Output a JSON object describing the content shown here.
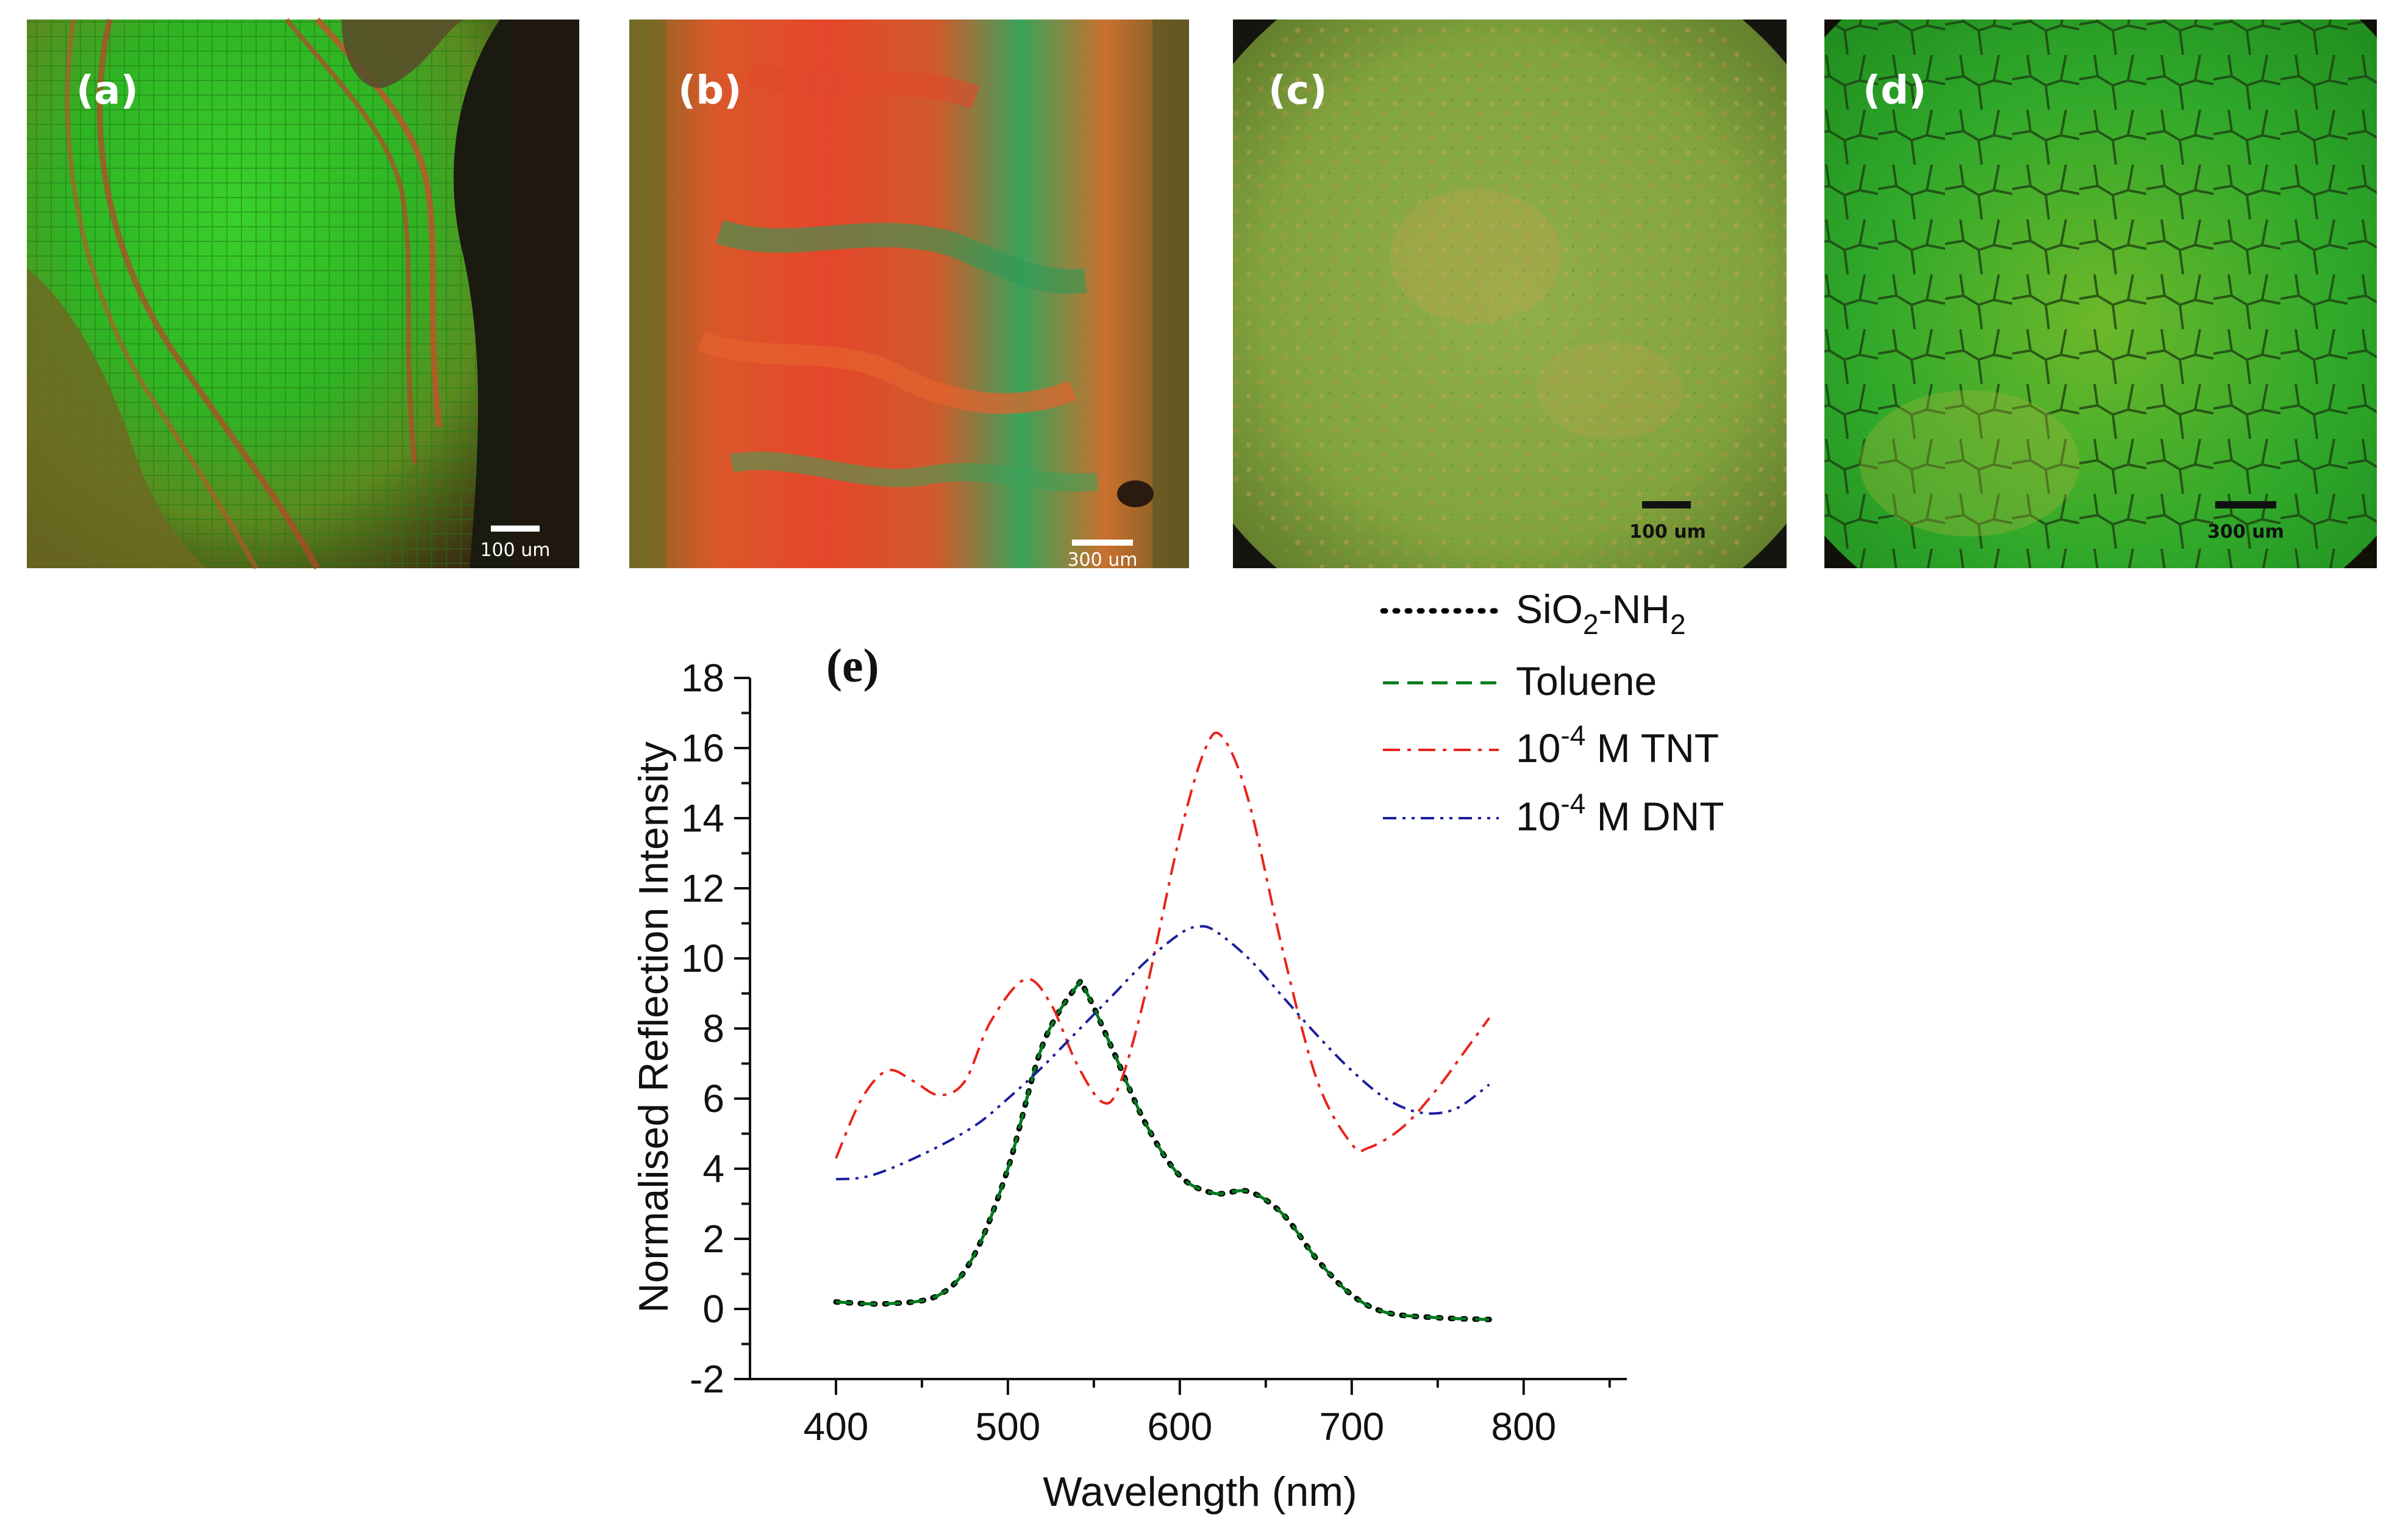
{
  "panels": [
    {
      "label": "(a)",
      "scale": "100 um"
    },
    {
      "label": "(b)",
      "scale": "300 um"
    },
    {
      "label": "(c)",
      "scale": "100 um"
    },
    {
      "label": "(d)",
      "scale": "300 um"
    }
  ],
  "chart_data": {
    "type": "line",
    "panel_label": "(e)",
    "xlabel": "Wavelength (nm)",
    "ylabel": "Normalised Reflection Intensity",
    "xlim": [
      350,
      860
    ],
    "ylim": [
      -2,
      18
    ],
    "xticks": [
      400,
      500,
      600,
      700,
      800
    ],
    "yticks": [
      -2,
      0,
      2,
      4,
      6,
      8,
      10,
      12,
      14,
      16,
      18
    ],
    "legend_position": "top-right",
    "series": [
      {
        "name": "SiO2-NH2",
        "legend": {
          "base": "SiO",
          "sub1": "2",
          "mid": "-NH",
          "sub2": "2"
        },
        "color": "#000000",
        "dash": "dotted",
        "x": [
          400,
          430,
          460,
          480,
          500,
          520,
          540,
          545,
          560,
          580,
          600,
          620,
          640,
          660,
          680,
          700,
          720,
          750,
          780
        ],
        "y": [
          0.2,
          0.15,
          0.4,
          1.5,
          4.0,
          7.5,
          9.2,
          9.1,
          7.5,
          5.3,
          3.8,
          3.3,
          3.35,
          2.7,
          1.4,
          0.4,
          -0.1,
          -0.25,
          -0.3
        ]
      },
      {
        "name": "Toluene",
        "legend": {
          "base": "Toluene"
        },
        "color": "#007a1f",
        "dash": "dashed",
        "x": [
          400,
          430,
          460,
          480,
          500,
          520,
          540,
          545,
          560,
          580,
          600,
          620,
          640,
          660,
          680,
          700,
          720,
          750,
          780
        ],
        "y": [
          0.2,
          0.15,
          0.4,
          1.5,
          4.0,
          7.5,
          9.2,
          9.1,
          7.5,
          5.3,
          3.8,
          3.3,
          3.35,
          2.7,
          1.4,
          0.4,
          -0.1,
          -0.25,
          -0.3
        ]
      },
      {
        "name": "10^-4 M TNT",
        "legend": {
          "base": "10",
          "sup": "-4",
          "rest": " M TNT"
        },
        "color": "#e8231b",
        "dash": "dashdot",
        "x": [
          400,
          415,
          430,
          445,
          460,
          475,
          490,
          510,
          525,
          540,
          555,
          565,
          580,
          600,
          615,
          625,
          640,
          660,
          680,
          700,
          710,
          730,
          750,
          765,
          780
        ],
        "y": [
          4.3,
          6.0,
          6.8,
          6.5,
          6.1,
          6.5,
          8.2,
          9.4,
          8.7,
          7.0,
          5.9,
          6.4,
          9.0,
          13.5,
          16.0,
          16.3,
          14.5,
          10.2,
          6.5,
          4.7,
          4.6,
          5.2,
          6.3,
          7.3,
          8.3
        ]
      },
      {
        "name": "10^-4 M DNT",
        "legend": {
          "base": "10",
          "sup": "-4",
          "rest": " M DNT"
        },
        "color": "#1c1f9c",
        "dash": "dashdotdot",
        "x": [
          400,
          420,
          450,
          480,
          500,
          520,
          540,
          560,
          580,
          600,
          610,
          620,
          640,
          660,
          680,
          700,
          720,
          740,
          760,
          780
        ],
        "y": [
          3.7,
          3.8,
          4.4,
          5.2,
          6.0,
          6.9,
          7.9,
          8.9,
          9.9,
          10.7,
          10.9,
          10.8,
          10.0,
          8.9,
          7.8,
          6.8,
          6.0,
          5.6,
          5.7,
          6.4
        ]
      }
    ]
  },
  "colors": {
    "axis": "#111111",
    "panel_bg": "#1a1a10"
  }
}
